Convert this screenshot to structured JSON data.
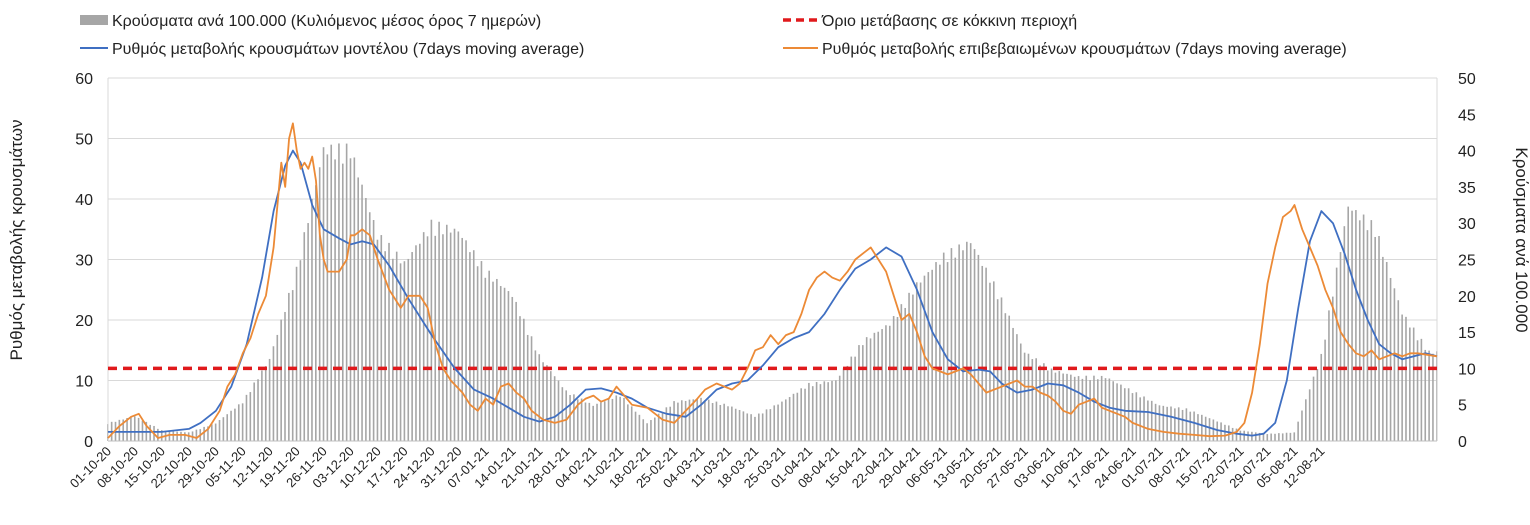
{
  "chart_data": {
    "type": "bar+line",
    "legend": [
      {
        "key": "cases",
        "label": "Κρούσματα ανά 100.000 (Κυλιόμενος μέσος όρος 7 ημερών)",
        "color": "#a6a6a6",
        "kind": "bar"
      },
      {
        "key": "threshold",
        "label": "Όριο μετάβασης σε κόκκινη περιοχή",
        "color": "#e0191c",
        "kind": "dashed-line"
      },
      {
        "key": "model",
        "label": "Ρυθμός μεταβολής κρουσμάτων μοντέλου (7days moving average)",
        "color": "#3f6fc2",
        "kind": "line"
      },
      {
        "key": "confirmed",
        "label": "Ρυθμός μεταβολής επιβεβαιωμένων κρουσμάτων (7days moving average)",
        "color": "#ec8a36",
        "kind": "line"
      }
    ],
    "y_left": {
      "label": "Ρυθμός μεταβολής κρουσμάτων",
      "min": 0,
      "max": 60,
      "ticks": [
        "0",
        "10",
        "20",
        "30",
        "40",
        "50",
        "60"
      ]
    },
    "y_right": {
      "label": "Κρούσματα ανά 100.000",
      "min": 0,
      "max": 50,
      "ticks": [
        "0",
        "5",
        "10",
        "15",
        "20",
        "25",
        "30",
        "35",
        "40",
        "45",
        "50"
      ]
    },
    "x_tick_labels": [
      "01-10-20",
      "08-10-20",
      "15-10-20",
      "22-10-20",
      "29-10-20",
      "05-11-20",
      "12-11-20",
      "19-11-20",
      "26-11-20",
      "03-12-20",
      "10-12-20",
      "17-12-20",
      "24-12-20",
      "31-12-20",
      "07-01-21",
      "14-01-21",
      "21-01-21",
      "28-01-21",
      "04-02-21",
      "11-02-21",
      "18-02-21",
      "25-02-21",
      "04-03-21",
      "11-03-21",
      "18-03-21",
      "25-03-21",
      "01-04-21",
      "08-04-21",
      "15-04-21",
      "22-04-21",
      "29-04-21",
      "06-05-21",
      "13-05-21",
      "20-05-21",
      "27-05-21",
      "03-06-21",
      "10-06-21",
      "17-06-21",
      "24-06-21",
      "01-07-21",
      "08-07-21",
      "15-07-21",
      "22-07-21",
      "29-07-21",
      "05-08-21",
      "12-08-21"
    ],
    "days_total": 325,
    "threshold_value_left_axis": 12,
    "cases_per_100k_weekly": [
      2.5,
      3.5,
      1.5,
      1.2,
      2.5,
      5.5,
      11.5,
      24.0,
      41.0,
      41.0,
      29.0,
      25.0,
      30.5,
      29.5,
      24.0,
      20.5,
      12.0,
      7.0,
      5.0,
      6.5,
      2.5,
      5.5,
      6.0,
      5.0,
      3.5,
      5.5,
      8.0,
      8.5,
      14.0,
      16.5,
      22.0,
      26.0,
      28.0,
      21.0,
      12.5,
      10.0,
      9.0,
      9.0,
      7.0,
      5.0,
      4.5,
      3.0,
      1.5,
      1.0,
      1.2,
      12.0,
      33.0,
      30.0,
      18.0,
      12.5,
      12.5
    ],
    "model_series": [
      [
        0,
        1.5
      ],
      [
        7,
        1.5
      ],
      [
        14,
        1.5
      ],
      [
        21,
        2.0
      ],
      [
        24,
        3.0
      ],
      [
        28,
        5.0
      ],
      [
        32,
        9.0
      ],
      [
        36,
        16.0
      ],
      [
        40,
        27.0
      ],
      [
        43,
        38.0
      ],
      [
        46,
        45.5
      ],
      [
        48,
        48.0
      ],
      [
        50,
        46.0
      ],
      [
        53,
        39.0
      ],
      [
        56,
        35.0
      ],
      [
        60,
        33.5
      ],
      [
        63,
        32.5
      ],
      [
        66,
        33.0
      ],
      [
        69,
        32.5
      ],
      [
        73,
        29.0
      ],
      [
        78,
        23.5
      ],
      [
        84,
        17.5
      ],
      [
        90,
        12.0
      ],
      [
        95,
        8.5
      ],
      [
        100,
        7.0
      ],
      [
        104,
        5.5
      ],
      [
        108,
        4.0
      ],
      [
        112,
        3.2
      ],
      [
        116,
        4.0
      ],
      [
        120,
        6.0
      ],
      [
        124,
        8.5
      ],
      [
        128,
        8.7
      ],
      [
        132,
        8.0
      ],
      [
        136,
        7.0
      ],
      [
        140,
        5.5
      ],
      [
        145,
        4.5
      ],
      [
        150,
        4.0
      ],
      [
        154,
        6.0
      ],
      [
        158,
        8.5
      ],
      [
        162,
        9.5
      ],
      [
        166,
        10.0
      ],
      [
        170,
        12.5
      ],
      [
        174,
        15.5
      ],
      [
        178,
        17.0
      ],
      [
        182,
        18.0
      ],
      [
        186,
        21.0
      ],
      [
        190,
        25.0
      ],
      [
        194,
        28.5
      ],
      [
        198,
        30.0
      ],
      [
        202,
        32.0
      ],
      [
        206,
        30.5
      ],
      [
        210,
        25.0
      ],
      [
        214,
        18.0
      ],
      [
        218,
        13.5
      ],
      [
        222,
        11.5
      ],
      [
        226,
        11.8
      ],
      [
        229,
        11.5
      ],
      [
        232,
        9.5
      ],
      [
        236,
        8.0
      ],
      [
        240,
        8.5
      ],
      [
        244,
        9.5
      ],
      [
        248,
        9.2
      ],
      [
        252,
        8.0
      ],
      [
        256,
        6.5
      ],
      [
        260,
        5.5
      ],
      [
        264,
        5.0
      ],
      [
        270,
        4.8
      ],
      [
        276,
        4.0
      ],
      [
        282,
        3.0
      ],
      [
        288,
        1.8
      ],
      [
        293,
        1.2
      ],
      [
        297,
        0.9
      ],
      [
        300,
        1.2
      ],
      [
        303,
        3.0
      ],
      [
        306,
        10.0
      ],
      [
        309,
        22.0
      ],
      [
        312,
        33.0
      ],
      [
        315,
        38.0
      ],
      [
        318,
        36.0
      ],
      [
        321,
        31.0
      ],
      [
        324,
        25.0
      ],
      [
        327,
        20.0
      ],
      [
        330,
        16.0
      ],
      [
        333,
        14.5
      ],
      [
        336,
        13.5
      ],
      [
        339,
        14.0
      ],
      [
        342,
        14.5
      ],
      [
        345,
        14.0
      ]
    ],
    "confirmed_series": [
      [
        0,
        0.5
      ],
      [
        3,
        2.5
      ],
      [
        6,
        4.0
      ],
      [
        8,
        4.5
      ],
      [
        10,
        2.5
      ],
      [
        13,
        0.5
      ],
      [
        16,
        1.0
      ],
      [
        20,
        1.0
      ],
      [
        23,
        0.5
      ],
      [
        26,
        2.0
      ],
      [
        29,
        5.0
      ],
      [
        31,
        9.0
      ],
      [
        33,
        11.0
      ],
      [
        35,
        14.5
      ],
      [
        37,
        17.0
      ],
      [
        39,
        21.0
      ],
      [
        41,
        24.0
      ],
      [
        43,
        32.0
      ],
      [
        45,
        46.0
      ],
      [
        46,
        42.0
      ],
      [
        47,
        50.0
      ],
      [
        48,
        52.5
      ],
      [
        49,
        48.0
      ],
      [
        50,
        45.0
      ],
      [
        51,
        46.0
      ],
      [
        52,
        45.0
      ],
      [
        53,
        47.0
      ],
      [
        54,
        43.0
      ],
      [
        55,
        34.0
      ],
      [
        56,
        30.0
      ],
      [
        57,
        28.0
      ],
      [
        60,
        28.0
      ],
      [
        62,
        30.0
      ],
      [
        63,
        34.0
      ],
      [
        64,
        34.0
      ],
      [
        66,
        35.0
      ],
      [
        68,
        34.0
      ],
      [
        70,
        30.0
      ],
      [
        73,
        25.0
      ],
      [
        76,
        22.0
      ],
      [
        78,
        24.0
      ],
      [
        81,
        24.0
      ],
      [
        83,
        22.0
      ],
      [
        85,
        16.0
      ],
      [
        87,
        12.0
      ],
      [
        89,
        10.0
      ],
      [
        92,
        8.0
      ],
      [
        94,
        6.0
      ],
      [
        96,
        5.0
      ],
      [
        98,
        7.0
      ],
      [
        100,
        6.0
      ],
      [
        102,
        9.0
      ],
      [
        104,
        9.5
      ],
      [
        106,
        8.0
      ],
      [
        108,
        7.0
      ],
      [
        110,
        5.0
      ],
      [
        113,
        3.5
      ],
      [
        116,
        3.0
      ],
      [
        119,
        3.5
      ],
      [
        122,
        6.0
      ],
      [
        124,
        7.0
      ],
      [
        126,
        7.5
      ],
      [
        128,
        6.5
      ],
      [
        130,
        7.0
      ],
      [
        132,
        9.0
      ],
      [
        134,
        7.5
      ],
      [
        136,
        6.0
      ],
      [
        140,
        5.5
      ],
      [
        144,
        3.5
      ],
      [
        147,
        3.0
      ],
      [
        150,
        5.0
      ],
      [
        153,
        7.0
      ],
      [
        155,
        8.5
      ],
      [
        158,
        9.5
      ],
      [
        160,
        9.0
      ],
      [
        162,
        8.5
      ],
      [
        164,
        9.5
      ],
      [
        166,
        12.0
      ],
      [
        168,
        15.0
      ],
      [
        170,
        15.5
      ],
      [
        172,
        17.5
      ],
      [
        174,
        16.0
      ],
      [
        176,
        17.5
      ],
      [
        178,
        18.0
      ],
      [
        180,
        21.0
      ],
      [
        182,
        25.0
      ],
      [
        184,
        27.0
      ],
      [
        186,
        28.0
      ],
      [
        188,
        27.0
      ],
      [
        190,
        26.5
      ],
      [
        192,
        28.0
      ],
      [
        194,
        30.0
      ],
      [
        196,
        31.0
      ],
      [
        198,
        32.0
      ],
      [
        200,
        30.0
      ],
      [
        202,
        28.0
      ],
      [
        204,
        24.0
      ],
      [
        206,
        20.0
      ],
      [
        208,
        21.0
      ],
      [
        210,
        18.0
      ],
      [
        212,
        14.0
      ],
      [
        214,
        12.0
      ],
      [
        216,
        11.5
      ],
      [
        218,
        11.0
      ],
      [
        220,
        11.5
      ],
      [
        222,
        12.0
      ],
      [
        224,
        11.0
      ],
      [
        226,
        9.5
      ],
      [
        228,
        8.0
      ],
      [
        230,
        8.5
      ],
      [
        232,
        9.0
      ],
      [
        234,
        9.5
      ],
      [
        236,
        10.0
      ],
      [
        238,
        9.0
      ],
      [
        240,
        9.0
      ],
      [
        242,
        8.0
      ],
      [
        244,
        7.5
      ],
      [
        246,
        6.5
      ],
      [
        248,
        5.0
      ],
      [
        250,
        4.5
      ],
      [
        252,
        6.0
      ],
      [
        254,
        6.5
      ],
      [
        256,
        7.0
      ],
      [
        258,
        5.5
      ],
      [
        260,
        5.0
      ],
      [
        262,
        4.5
      ],
      [
        264,
        4.0
      ],
      [
        266,
        3.0
      ],
      [
        270,
        2.0
      ],
      [
        274,
        1.5
      ],
      [
        278,
        1.2
      ],
      [
        282,
        1.0
      ],
      [
        286,
        0.8
      ],
      [
        290,
        0.9
      ],
      [
        293,
        1.5
      ],
      [
        295,
        3.0
      ],
      [
        297,
        8.0
      ],
      [
        299,
        16.0
      ],
      [
        301,
        26.0
      ],
      [
        303,
        32.0
      ],
      [
        305,
        37.0
      ],
      [
        307,
        38.0
      ],
      [
        308,
        39.0
      ],
      [
        310,
        35.0
      ],
      [
        312,
        32.0
      ],
      [
        314,
        29.0
      ],
      [
        316,
        25.0
      ],
      [
        318,
        22.0
      ],
      [
        320,
        18.0
      ],
      [
        322,
        16.0
      ],
      [
        324,
        14.5
      ],
      [
        326,
        14.0
      ],
      [
        328,
        15.0
      ],
      [
        330,
        13.5
      ],
      [
        332,
        14.0
      ],
      [
        334,
        14.5
      ],
      [
        336,
        14.0
      ],
      [
        338,
        14.5
      ],
      [
        340,
        14.5
      ],
      [
        345,
        14.0
      ]
    ]
  }
}
